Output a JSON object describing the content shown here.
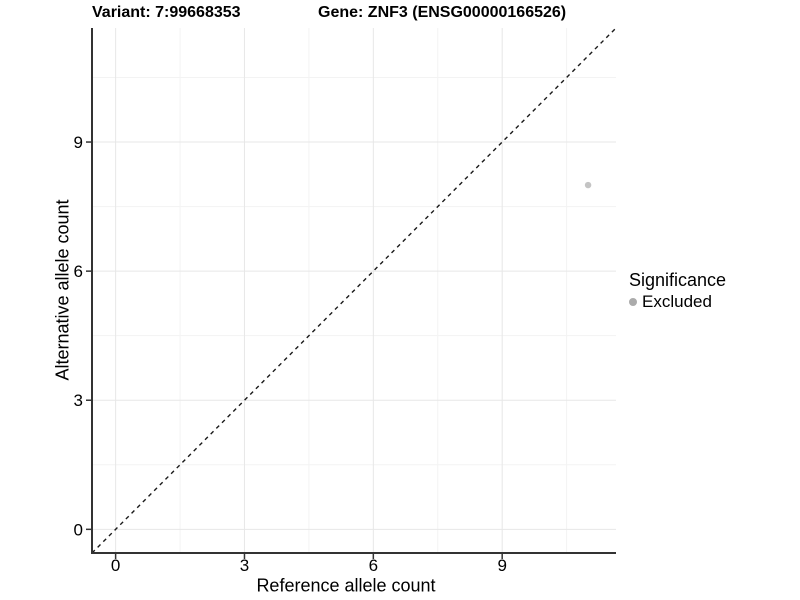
{
  "titles": {
    "variant": "Variant: 7:99668353",
    "gene": "Gene: ZNF3 (ENSG00000166526)"
  },
  "chart_data": {
    "type": "scatter",
    "title": "Variant: 7:99668353   Gene: ZNF3 (ENSG00000166526)",
    "xlabel": "Reference allele count",
    "ylabel": "Alternative allele count",
    "x_ticks": [
      0,
      3,
      6,
      9
    ],
    "y_ticks": [
      0,
      3,
      6,
      9
    ],
    "x_minor_gridlines": [
      1.5,
      4.5,
      7.5,
      10.5
    ],
    "y_minor_gridlines": [
      1.5,
      4.5,
      7.5,
      10.5
    ],
    "xlim": [
      -0.55,
      11.65
    ],
    "ylim": [
      -0.55,
      11.65
    ],
    "grid": "on",
    "points": [
      {
        "x": 11,
        "y": 8,
        "series": "Excluded"
      }
    ],
    "reference_line": {
      "type": "identity",
      "slope": 1,
      "intercept": 0,
      "style": "dashed"
    },
    "legend": {
      "position": "right",
      "title": "Significance",
      "items": [
        {
          "label": "Excluded",
          "color": "#ababab"
        }
      ]
    },
    "colors": {
      "point": "#c4c4c4",
      "grid_major": "#e7e7e7",
      "grid_minor": "#f3f3f3",
      "axis_line": "#333333",
      "dashed_line": "#1a1a1a",
      "tick": "#333333"
    }
  }
}
